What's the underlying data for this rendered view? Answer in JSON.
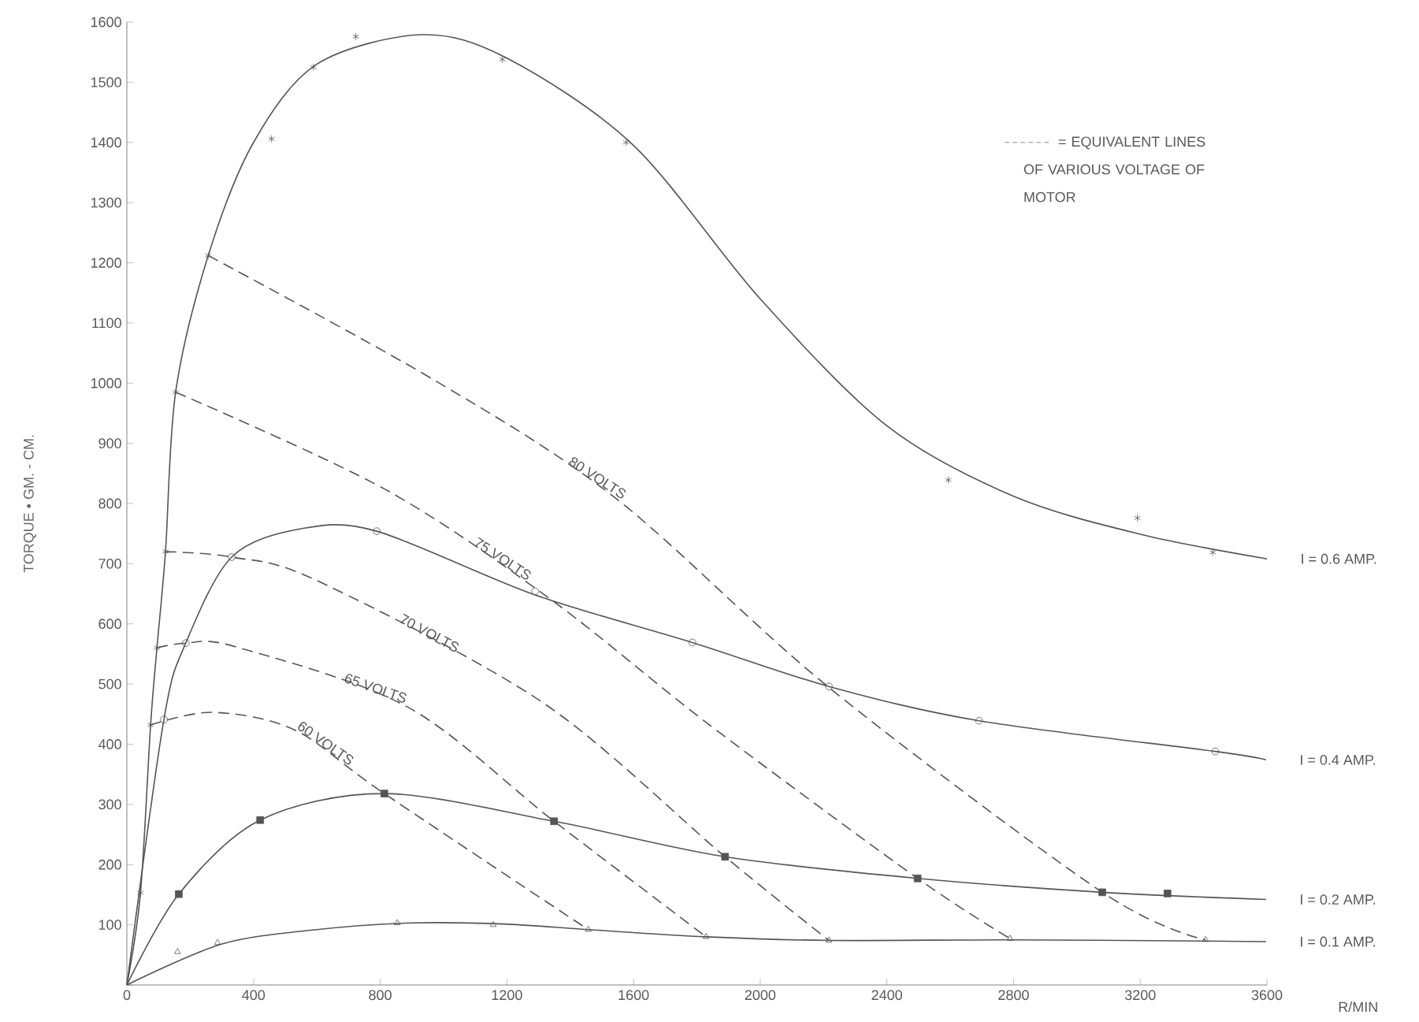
{
  "chart_data": {
    "type": "line",
    "xlabel": "R/MIN",
    "ylabel": "TORQUE • GM. - CM.",
    "xlim": [
      0,
      3600
    ],
    "ylim": [
      0,
      1600
    ],
    "xticks": [
      0,
      400,
      800,
      1200,
      1600,
      2000,
      2400,
      2800,
      3200,
      3600
    ],
    "yticks": [
      {
        "value": 0,
        "label": null
      },
      100,
      200,
      300,
      400,
      500,
      600,
      700,
      800,
      900,
      1000,
      1100,
      1200,
      1300,
      1400,
      1500,
      1600
    ],
    "grid": false,
    "annotations": [
      "= EQUIVALENT LINES OF VARIOUS VOLTAGE OF MOTOR"
    ],
    "series": [
      {
        "name": "I = 0.6 AMP.",
        "line_style": "solid",
        "color": "#555555",
        "x": [
          0,
          43,
          75,
          95,
          122,
          154,
          257,
          400,
          600,
          929,
          1200,
          1600,
          2000,
          2400,
          2800,
          3200,
          3600
        ],
        "values": [
          0,
          153,
          432,
          560,
          720,
          985,
          1212,
          1400,
          1530,
          1579,
          1540,
          1395,
          1140,
          929,
          812,
          749,
          708
        ]
      },
      {
        "name": "I = 0.4 AMP.",
        "line_style": "solid",
        "color": "#555555",
        "x": [
          0,
          117,
          186,
          331,
          550,
          789,
          1289,
          1786,
          2217,
          2691,
          3437,
          3597
        ],
        "values": [
          0,
          441,
          568,
          711,
          758,
          754,
          648,
          569,
          496,
          439,
          388,
          374
        ]
      },
      {
        "name": "I = 0.2 AMP.",
        "line_style": "solid",
        "color": "#555555",
        "x": [
          0,
          164,
          421,
          813,
          1349,
          1889,
          2497,
          3080,
          3597
        ],
        "values": [
          0,
          151,
          274,
          318,
          272,
          213,
          177,
          154,
          142
        ]
      },
      {
        "name": "I = 0.1 AMP.",
        "line_style": "solid",
        "color": "#555555",
        "x": [
          0,
          300,
          600,
          900,
          1200,
          1457,
          1829,
          2217,
          2789,
          3406,
          3597
        ],
        "values": [
          0,
          68,
          92,
          103,
          101,
          92,
          80,
          74,
          75,
          73,
          72
        ]
      },
      {
        "name": "80 VOLTS",
        "line_style": "dashed",
        "color": "#555555",
        "x": [
          257,
          971,
          1543,
          2220,
          3080,
          3406
        ],
        "values": [
          1212,
          1005,
          809,
          493,
          154,
          75
        ]
      },
      {
        "name": "75 VOLTS",
        "line_style": "dashed",
        "color": "#555555",
        "x": [
          154,
          814,
          1340,
          1840,
          2497,
          2789
        ],
        "values": [
          985,
          824,
          640,
          432,
          177,
          77
        ]
      },
      {
        "name": "70 VOLTS",
        "line_style": "dashed",
        "color": "#555555",
        "x": [
          122,
          331,
          600,
          1314,
          1889,
          2217
        ],
        "values": [
          720,
          711,
          672,
          469,
          213,
          74
        ]
      },
      {
        "name": "65 VOLTS",
        "line_style": "dashed",
        "color": "#555555",
        "x": [
          95,
          186,
          343,
          886,
          1349,
          1829
        ],
        "values": [
          560,
          568,
          562,
          462,
          272,
          80
        ]
      },
      {
        "name": "60 VOLTS",
        "line_style": "dashed",
        "color": "#555555",
        "x": [
          75,
          271,
          529,
          813,
          1457
        ],
        "values": [
          432,
          453,
          424,
          318,
          92
        ]
      },
      {
        "type": "scatter",
        "marker": "cross",
        "color": "#555555",
        "x": [
          43,
          75,
          95,
          122,
          154,
          257,
          457,
          589,
          723,
          1186,
          1577,
          2594,
          3191,
          3429
        ],
        "values": [
          153,
          432,
          560,
          720,
          985,
          1212,
          1406,
          1525,
          1576,
          1538,
          1400,
          839,
          776,
          719
        ]
      },
      {
        "type": "scatter",
        "marker": "circle",
        "color": "#555555",
        "x": [
          117,
          186,
          331,
          789,
          1289,
          1786,
          2217,
          2691,
          3437
        ],
        "values": [
          441,
          568,
          711,
          754,
          654,
          569,
          496,
          439,
          388
        ]
      },
      {
        "type": "scatter",
        "marker": "square",
        "color": "#555555",
        "x": [
          164,
          421,
          813,
          1349,
          1889,
          2497,
          3080,
          3286
        ],
        "values": [
          151,
          274,
          318,
          272,
          213,
          177,
          154,
          152
        ]
      },
      {
        "type": "scatter",
        "marker": "triangle",
        "color": "#555555",
        "x": [
          160,
          286,
          854,
          1157,
          1457,
          1829,
          2217,
          2789,
          3406
        ],
        "values": [
          55,
          70,
          103,
          100,
          92,
          80,
          74,
          77,
          75
        ]
      }
    ]
  }
}
